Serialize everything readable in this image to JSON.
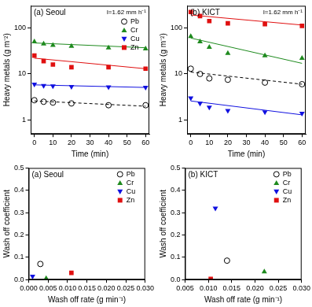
{
  "chart_data": [
    {
      "type": "scatter",
      "title": "(a) Seoul",
      "annotation": "I=1.62 mm h⁻¹",
      "x_label": "Time (min)",
      "y_label": "Heavy metals (g m⁻²)",
      "x": [
        0,
        5,
        10,
        20,
        40,
        60
      ],
      "xlim": [
        -2,
        62
      ],
      "xticks": [
        0,
        10,
        20,
        30,
        40,
        50,
        60
      ],
      "ylim": [
        0.5,
        300
      ],
      "yticks": [
        1,
        10,
        100
      ],
      "log": "y",
      "grid": false,
      "legend": "upper right",
      "series": [
        {
          "name": "Pb",
          "color": "#000000",
          "marker": "circle_open",
          "line_style": "dashed",
          "values": [
            2.7,
            2.5,
            2.4,
            2.3,
            2.1,
            2.1
          ],
          "fit": [
            2.6,
            2.0
          ]
        },
        {
          "name": "Cr",
          "color": "#1e8a1e",
          "marker": "triangle",
          "line_style": "solid",
          "values": [
            50,
            45,
            42,
            40,
            37,
            35
          ],
          "fit": [
            47,
            37
          ]
        },
        {
          "name": "Cu",
          "color": "#1010e0",
          "marker": "triangle_down",
          "line_style": "solid",
          "values": [
            6,
            5.6,
            5.5,
            5.3,
            5.2,
            5.1
          ],
          "fit": [
            5.8,
            5.1
          ]
        },
        {
          "name": "Zn",
          "color": "#e01010",
          "marker": "square",
          "line_style": "solid",
          "values": [
            25,
            19,
            16,
            14,
            14,
            13
          ],
          "fit": [
            22,
            13
          ]
        }
      ]
    },
    {
      "type": "scatter",
      "title": "(b) KICT",
      "annotation": "I=1.62 mm h⁻¹",
      "x_label": "Time (min)",
      "y_label": "Heavy metals (g m⁻²)",
      "x": [
        0,
        5,
        10,
        20,
        40,
        60
      ],
      "xlim": [
        -2,
        62
      ],
      "xticks": [
        0,
        10,
        20,
        30,
        40,
        50,
        60
      ],
      "ylim": [
        0.5,
        300
      ],
      "yticks": [
        1,
        10,
        100
      ],
      "log": "y",
      "grid": false,
      "series": [
        {
          "name": "Pb",
          "color": "#000000",
          "marker": "circle_open",
          "line_style": "dashed",
          "values": [
            13,
            10,
            8,
            7.5,
            6.5,
            6
          ],
          "fit": [
            11,
            6
          ]
        },
        {
          "name": "Cr",
          "color": "#1e8a1e",
          "marker": "triangle",
          "line_style": "solid",
          "values": [
            65,
            50,
            38,
            28,
            25,
            22
          ],
          "fit": [
            60,
            17
          ]
        },
        {
          "name": "Cu",
          "color": "#1010e0",
          "marker": "triangle_down",
          "line_style": "solid",
          "values": [
            3,
            2.3,
            1.9,
            1.6,
            1.5,
            1.4
          ],
          "fit": [
            2.6,
            1.3
          ]
        },
        {
          "name": "Zn",
          "color": "#e01010",
          "marker": "square",
          "line_style": "solid",
          "values": [
            220,
            180,
            140,
            125,
            120,
            110
          ],
          "fit": [
            190,
            115
          ]
        }
      ]
    },
    {
      "type": "scatter",
      "title": "(a) Seoul",
      "x_label": "Wash off rate (g min⁻¹)",
      "y_label": "Wash off coefficient",
      "xlim": [
        0,
        0.03
      ],
      "xticks": [
        {
          "value": 0,
          "label": "0.000"
        },
        {
          "value": 0.005,
          "label": "0.005"
        },
        {
          "value": 0.01,
          "label": "0.010"
        },
        {
          "value": 0.015,
          "label": "0.015"
        },
        {
          "value": 0.02,
          "label": "0.020"
        },
        {
          "value": 0.025,
          "label": "0.025"
        },
        {
          "value": 0.03,
          "label": "0.030"
        }
      ],
      "ylim": [
        0,
        0.5
      ],
      "yticks": [
        {
          "value": 0,
          "label": "0.0"
        },
        {
          "value": 0.1,
          "label": "0.1"
        },
        {
          "value": 0.2,
          "label": "0.2"
        },
        {
          "value": 0.3,
          "label": "0.3"
        },
        {
          "value": 0.4,
          "label": "0.4"
        },
        {
          "value": 0.5,
          "label": "0.5"
        }
      ],
      "grid": false,
      "legend": "upper right",
      "series": [
        {
          "name": "Pb",
          "color": "#000000",
          "marker": "circle_open",
          "x": [
            0.003
          ],
          "values": [
            0.07
          ]
        },
        {
          "name": "Cr",
          "color": "#1e8a1e",
          "marker": "triangle",
          "x": [
            0.0045
          ],
          "values": [
            0.005
          ]
        },
        {
          "name": "Cu",
          "color": "#1010e0",
          "marker": "triangle_down",
          "x": [
            0.001
          ],
          "values": [
            0.015
          ]
        },
        {
          "name": "Zn",
          "color": "#e01010",
          "marker": "square",
          "x": [
            0.011
          ],
          "values": [
            0.03
          ]
        }
      ]
    },
    {
      "type": "scatter",
      "title": "(b) KICT",
      "x_label": "Wash off rate (g min⁻¹)",
      "y_label": "Wash off coefficient",
      "xlim": [
        0.005,
        0.03
      ],
      "xticks": [
        {
          "value": 0.005,
          "label": "0.005"
        },
        {
          "value": 0.01,
          "label": "0.010"
        },
        {
          "value": 0.015,
          "label": "0.015"
        },
        {
          "value": 0.02,
          "label": "0.020"
        },
        {
          "value": 0.025,
          "label": "0.025"
        },
        {
          "value": 0.03,
          "label": "0.030"
        }
      ],
      "ylim": [
        0,
        0.5
      ],
      "yticks": [
        {
          "value": 0,
          "label": "0.0"
        },
        {
          "value": 0.1,
          "label": "0.1"
        },
        {
          "value": 0.2,
          "label": "0.2"
        },
        {
          "value": 0.3,
          "label": "0.3"
        },
        {
          "value": 0.4,
          "label": "0.4"
        },
        {
          "value": 0.5,
          "label": "0.5"
        }
      ],
      "grid": false,
      "legend": "upper right",
      "series": [
        {
          "name": "Pb",
          "color": "#000000",
          "marker": "circle_open",
          "x": [
            0.014
          ],
          "values": [
            0.085
          ]
        },
        {
          "name": "Cr",
          "color": "#1e8a1e",
          "marker": "triangle",
          "x": [
            0.022
          ],
          "values": [
            0.035
          ]
        },
        {
          "name": "Cu",
          "color": "#1010e0",
          "marker": "triangle_down",
          "x": [
            0.0115
          ],
          "values": [
            0.32
          ]
        },
        {
          "name": "Zn",
          "color": "#e01010",
          "marker": "square",
          "x": [
            0.0105
          ],
          "values": [
            0.003
          ]
        }
      ]
    }
  ]
}
